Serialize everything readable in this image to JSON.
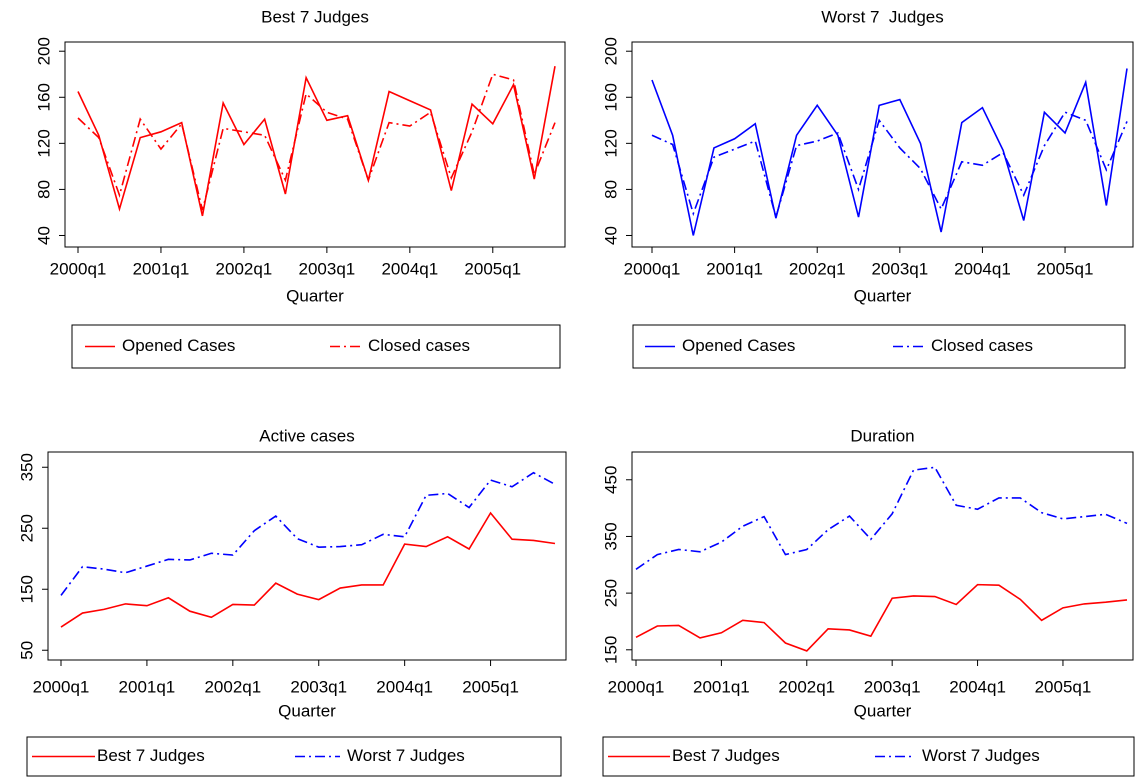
{
  "chart_data": [
    {
      "type": "line",
      "title": "Best 7 Judges",
      "x_label": "Quarter",
      "categories": [
        "2000q1",
        null,
        null,
        null,
        "2001q1",
        null,
        null,
        null,
        "2002q1",
        null,
        null,
        null,
        "2003q1",
        null,
        null,
        null,
        "2004q1",
        null,
        null,
        null,
        "2005q1",
        null,
        null,
        null
      ],
      "series": [
        {
          "name": "Opened Cases",
          "color": "#ff0000",
          "style": "solid",
          "values": [
            165,
            127,
            63,
            125,
            130,
            138,
            57,
            155,
            119,
            141,
            76,
            177,
            140,
            144,
            88,
            165,
            157,
            149,
            79,
            154,
            137,
            171,
            89,
            187
          ]
        },
        {
          "name": "Closed cases",
          "color": "#ff0000",
          "style": "dashdot",
          "values": [
            142,
            125,
            75,
            141,
            115,
            137,
            62,
            133,
            130,
            127,
            88,
            163,
            147,
            141,
            88,
            138,
            135,
            147,
            90,
            130,
            180,
            175,
            93,
            138
          ]
        }
      ],
      "ylim": [
        30,
        208
      ],
      "yticks": [
        40,
        80,
        120,
        160,
        200
      ],
      "grid": false,
      "legend": "bottom"
    },
    {
      "type": "line",
      "title": "Worst 7  Judges",
      "x_label": "Quarter",
      "categories": [
        "2000q1",
        null,
        null,
        null,
        "2001q1",
        null,
        null,
        null,
        "2002q1",
        null,
        null,
        null,
        "2003q1",
        null,
        null,
        null,
        "2004q1",
        null,
        null,
        null,
        "2005q1",
        null,
        null,
        null
      ],
      "series": [
        {
          "name": "Opened Cases",
          "color": "#0000ff",
          "style": "solid",
          "values": [
            175,
            127,
            40,
            116,
            124,
            137,
            55,
            127,
            153,
            127,
            56,
            153,
            158,
            120,
            43,
            138,
            151,
            114,
            53,
            147,
            129,
            173,
            66,
            185
          ]
        },
        {
          "name": "Closed cases",
          "color": "#0000ff",
          "style": "dashdot",
          "values": [
            127,
            119,
            59,
            108,
            115,
            122,
            56,
            118,
            122,
            129,
            80,
            140,
            116,
            98,
            63,
            104,
            101,
            112,
            75,
            118,
            147,
            140,
            97,
            139
          ]
        }
      ],
      "ylim": [
        30,
        208
      ],
      "yticks": [
        40,
        80,
        120,
        160,
        200
      ],
      "grid": false,
      "legend": "bottom"
    },
    {
      "type": "line",
      "title": "Active cases",
      "x_label": "Quarter",
      "categories": [
        "2000q1",
        null,
        null,
        null,
        "2001q1",
        null,
        null,
        null,
        "2002q1",
        null,
        null,
        null,
        "2003q1",
        null,
        null,
        null,
        "2004q1",
        null,
        null,
        null,
        "2005q1",
        null,
        null,
        null
      ],
      "series": [
        {
          "name": "Best 7 Judges",
          "color": "#ff0000",
          "style": "solid",
          "values": [
            88,
            111,
            117,
            126,
            123,
            136,
            114,
            104,
            125,
            124,
            160,
            142,
            133,
            152,
            157,
            157,
            224,
            220,
            236,
            216,
            275,
            232,
            230,
            225
          ]
        },
        {
          "name": "Worst 7 Judges",
          "color": "#0000ff",
          "style": "dashdot",
          "values": [
            140,
            187,
            183,
            177,
            188,
            199,
            198,
            209,
            206,
            246,
            270,
            233,
            219,
            220,
            223,
            240,
            236,
            304,
            307,
            284,
            329,
            318,
            341,
            322
          ]
        }
      ],
      "ylim": [
        34,
        375
      ],
      "yticks": [
        50,
        150,
        250,
        350
      ],
      "grid": false,
      "legend": "bottom"
    },
    {
      "type": "line",
      "title": "Duration",
      "x_label": "Quarter",
      "categories": [
        "2000q1",
        null,
        null,
        null,
        "2001q1",
        null,
        null,
        null,
        "2002q1",
        null,
        null,
        null,
        "2003q1",
        null,
        null,
        null,
        "2004q1",
        null,
        null,
        null,
        "2005q1",
        null,
        null,
        null
      ],
      "series": [
        {
          "name": "Best 7 Judges",
          "color": "#ff0000",
          "style": "solid",
          "values": [
            172,
            192,
            193,
            171,
            180,
            202,
            198,
            162,
            148,
            187,
            185,
            174,
            241,
            245,
            244,
            230,
            265,
            264,
            239,
            202,
            224,
            231,
            234,
            238
          ]
        },
        {
          "name": "Worst 7 Judges",
          "color": "#0000ff",
          "style": "dashdot",
          "values": [
            292,
            318,
            327,
            323,
            340,
            368,
            385,
            318,
            327,
            362,
            386,
            345,
            390,
            467,
            472,
            405,
            398,
            418,
            418,
            392,
            381,
            385,
            389,
            373
          ]
        }
      ],
      "ylim": [
        132,
        499
      ],
      "yticks": [
        150,
        250,
        350,
        450
      ],
      "grid": false,
      "legend": "bottom"
    }
  ]
}
